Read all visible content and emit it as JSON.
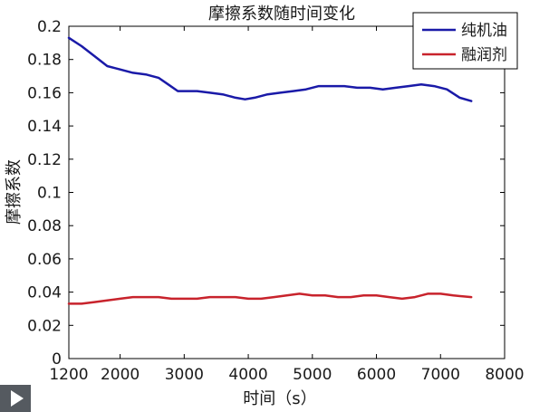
{
  "chart_data": {
    "type": "line",
    "title": "摩擦系数随时间变化",
    "xlabel": "时间（s）",
    "ylabel": "摩擦系数",
    "xlim": [
      1200,
      8000
    ],
    "ylim": [
      0,
      0.2
    ],
    "xticks": [
      "1200",
      "2000",
      "3000",
      "4000",
      "5000",
      "6000",
      "7000",
      "8000"
    ],
    "yticks": [
      "0",
      "0.02",
      "0.04",
      "0.06",
      "0.08",
      "0.1",
      "0.12",
      "0.14",
      "0.16",
      "0.18",
      "0.2"
    ],
    "grid": false,
    "legend_position": "top-right",
    "series": [
      {
        "name": "纯机油",
        "color": "#1a1aa8",
        "x": [
          1200,
          1400,
          1600,
          1800,
          2000,
          2200,
          2400,
          2600,
          2750,
          2900,
          3000,
          3200,
          3400,
          3600,
          3800,
          3950,
          4100,
          4300,
          4500,
          4700,
          4900,
          5100,
          5300,
          5500,
          5700,
          5900,
          6100,
          6300,
          6500,
          6700,
          6900,
          7100,
          7300,
          7480
        ],
        "values": [
          0.193,
          0.188,
          0.182,
          0.176,
          0.174,
          0.172,
          0.171,
          0.169,
          0.165,
          0.161,
          0.161,
          0.161,
          0.16,
          0.159,
          0.157,
          0.156,
          0.157,
          0.159,
          0.16,
          0.161,
          0.162,
          0.164,
          0.164,
          0.164,
          0.163,
          0.163,
          0.162,
          0.163,
          0.164,
          0.165,
          0.164,
          0.162,
          0.157,
          0.155
        ]
      },
      {
        "name": "融润剂",
        "color": "#c8232c",
        "x": [
          1200,
          1400,
          1600,
          1800,
          2000,
          2200,
          2400,
          2600,
          2800,
          3000,
          3200,
          3400,
          3600,
          3800,
          4000,
          4200,
          4400,
          4600,
          4800,
          5000,
          5200,
          5400,
          5600,
          5800,
          6000,
          6200,
          6400,
          6600,
          6800,
          7000,
          7200,
          7480
        ],
        "values": [
          0.033,
          0.033,
          0.034,
          0.035,
          0.036,
          0.037,
          0.037,
          0.037,
          0.036,
          0.036,
          0.036,
          0.037,
          0.037,
          0.037,
          0.036,
          0.036,
          0.037,
          0.038,
          0.039,
          0.038,
          0.038,
          0.037,
          0.037,
          0.038,
          0.038,
          0.037,
          0.036,
          0.037,
          0.039,
          0.039,
          0.038,
          0.037
        ]
      }
    ]
  }
}
